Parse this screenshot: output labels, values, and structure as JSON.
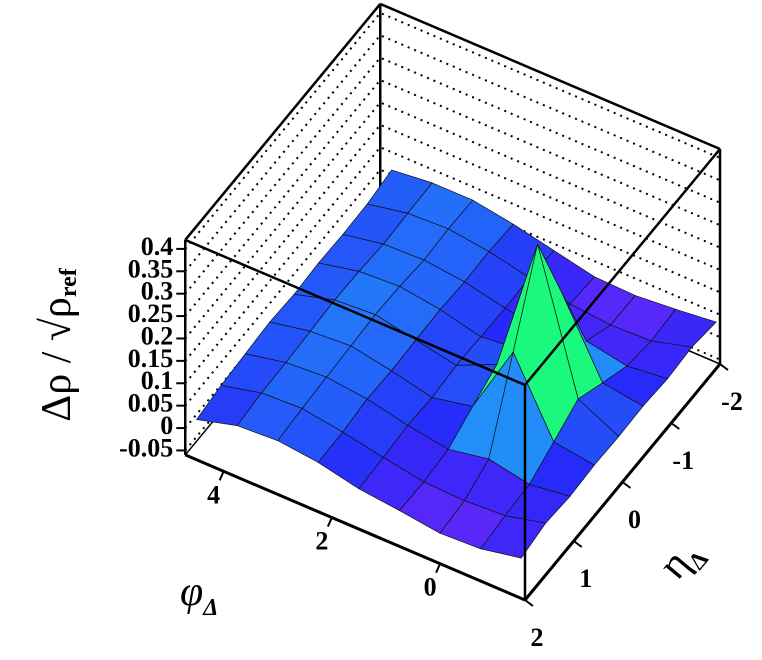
{
  "chart_data": {
    "type": "surface",
    "xlabel": "φ",
    "xlabel_sub": "Δ",
    "ylabel": "η",
    "ylabel_sub": "Δ",
    "zlabel": "Δρ / √ρ",
    "zlabel_sub": "ref",
    "x": [
      -1.5,
      -0.75,
      0,
      0.75,
      1.5,
      2.25,
      3,
      3.75,
      4.5
    ],
    "y": [
      -2,
      -1.5,
      -1,
      -0.5,
      0,
      0.5,
      1,
      1.5,
      2
    ],
    "z": [
      [
        0.03,
        0.04,
        0.035,
        0.04,
        0.038,
        0.04,
        0.036,
        0.042,
        0.03
      ],
      [
        0.02,
        0.015,
        0.025,
        0.053,
        0.083,
        0.053,
        0.024,
        0.02,
        0.012
      ],
      [
        0.012,
        0.012,
        0.042,
        0.215,
        0.39,
        0.215,
        0.042,
        0.015,
        0.008
      ],
      [
        0.015,
        0.02,
        0.022,
        0.05,
        0.083,
        0.055,
        0.025,
        0.018,
        0.02
      ],
      [
        0.035,
        0.04,
        0.038,
        0.04,
        0.042,
        0.036,
        0.04,
        0.034,
        0.03
      ],
      [
        0.055,
        0.06,
        0.058,
        0.062,
        0.06,
        0.057,
        0.06,
        0.052,
        0.05
      ],
      [
        0.07,
        0.072,
        0.068,
        0.075,
        0.078,
        0.074,
        0.07,
        0.066,
        0.06
      ],
      [
        0.07,
        0.068,
        0.065,
        0.07,
        0.072,
        0.068,
        0.064,
        0.062,
        0.055
      ],
      [
        0.06,
        0.05,
        0.048,
        0.05,
        0.046,
        0.05,
        0.045,
        0.04,
        0.03
      ]
    ],
    "xlim": [
      -1.57,
      4.71
    ],
    "ylim": [
      -2,
      2
    ],
    "zlim": [
      -0.06,
      0.42
    ],
    "xticks": [
      0,
      2,
      4
    ],
    "yticks": [
      -2,
      -1,
      0,
      1,
      2
    ],
    "zticks": [
      -0.05,
      0,
      0.05,
      0.1,
      0.15,
      0.2,
      0.25,
      0.3,
      0.35,
      0.4
    ]
  }
}
